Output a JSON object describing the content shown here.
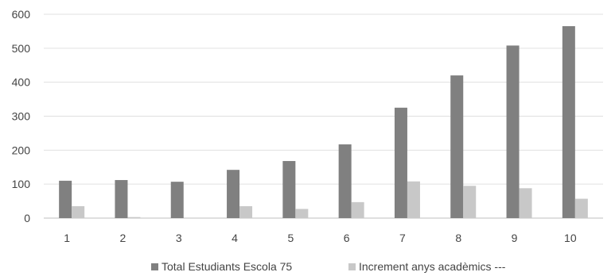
{
  "chart_data": {
    "type": "bar",
    "categories": [
      "1",
      "2",
      "3",
      "4",
      "5",
      "6",
      "7",
      "8",
      "9",
      "10"
    ],
    "series": [
      {
        "name": "Total Estudiants Escola 75",
        "color": "#808080",
        "values": [
          110,
          112,
          107,
          142,
          168,
          217,
          325,
          420,
          508,
          565
        ]
      },
      {
        "name": "Increment anys acadèmics ---",
        "color": "#c8c8c8",
        "values": [
          35,
          3,
          0,
          35,
          27,
          47,
          108,
          95,
          88,
          57
        ]
      }
    ],
    "yticks": [
      "0",
      "100",
      "200",
      "300",
      "400",
      "500",
      "600"
    ],
    "ylim": [
      0,
      600
    ],
    "grid": true,
    "legend_position": "bottom"
  }
}
